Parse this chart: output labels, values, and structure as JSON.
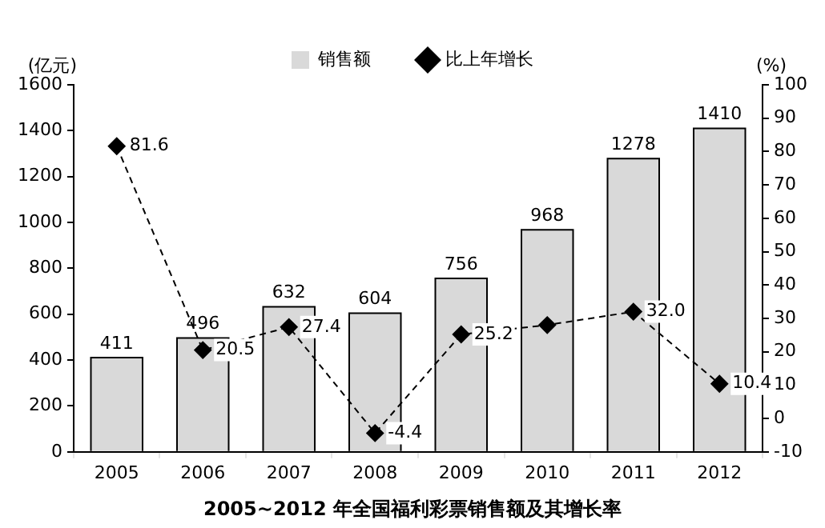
{
  "chart_data": {
    "type": "bar",
    "title": "2005~2012 年全国福利彩票销售额及其增长率",
    "ylabel": "(亿元)",
    "y2label": "(%)",
    "categories": [
      "2005",
      "2006",
      "2007",
      "2008",
      "2009",
      "2010",
      "2011",
      "2012"
    ],
    "series": [
      {
        "name": "销售额",
        "color": "#d9d9d9",
        "values": [
          411,
          496,
          632,
          604,
          756,
          968,
          1278,
          1410
        ],
        "value_labels": [
          "411",
          "496",
          "632",
          "604",
          "756",
          "968",
          "1278",
          "1410"
        ]
      },
      {
        "name": "比上年增长",
        "type": "line",
        "axis": "y2",
        "color": "#000000",
        "marker": "diamond",
        "line_style": "dashed",
        "values": [
          81.6,
          20.5,
          27.4,
          -4.4,
          25.2,
          28,
          32.0,
          10.4
        ],
        "value_labels": [
          "81.6",
          "20.5",
          "27.4",
          "-4.4",
          "25.2",
          null,
          "32.0",
          "10.4"
        ]
      }
    ],
    "ylim": [
      0,
      1600
    ],
    "yticks": [
      0,
      200,
      400,
      600,
      800,
      1000,
      1200,
      1400,
      1600
    ],
    "y2lim": [
      -10,
      100
    ],
    "y2ticks": [
      -10,
      0,
      10,
      20,
      30,
      40,
      50,
      60,
      70,
      80,
      90,
      100
    ],
    "grid": false,
    "legend": "top"
  }
}
